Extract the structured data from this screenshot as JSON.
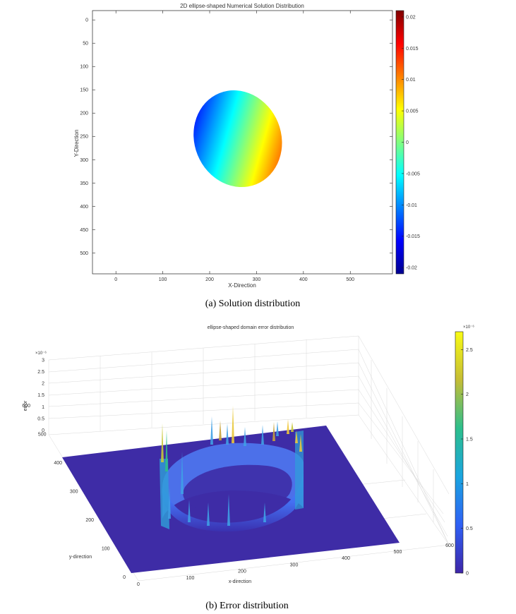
{
  "chart_data": [
    {
      "type": "heatmap",
      "title": "2D ellipse-shaped Numerical Solution Distribution",
      "xlabel": "X-Direction",
      "ylabel": "Y-Direction",
      "xlim": [
        -50,
        590
      ],
      "ylim": [
        545,
        -20
      ],
      "xticks": [
        0,
        100,
        200,
        300,
        400,
        500
      ],
      "yticks": [
        0,
        50,
        100,
        150,
        200,
        250,
        300,
        350,
        400,
        450,
        500
      ],
      "ellipse": {
        "cx": 260,
        "cy": 300,
        "rx": 125,
        "ry": 170
      },
      "colorbar": {
        "colormap": "jet",
        "range": [
          -0.021,
          0.021
        ],
        "ticks": [
          0.02,
          0.015,
          0.01,
          0.005,
          0,
          -0.005,
          -0.01,
          -0.015,
          -0.02
        ],
        "tick_labels": [
          "0.02",
          "0.015",
          "0.01",
          "0.005",
          "0",
          "-0.005",
          "-0.01",
          "-0.015",
          "-0.02"
        ]
      },
      "caption": "(a) Solution distribution"
    },
    {
      "type": "surface",
      "title": "ellipse-shaped domain error distribution",
      "xlabel": "x-direction",
      "ylabel": "y-direction",
      "zlabel": "error",
      "z_exponent": "×10⁻⁶",
      "x_tick_labels": [
        "0",
        "100",
        "200",
        "300",
        "400",
        "500",
        "600"
      ],
      "y_tick_labels": [
        "0",
        "100",
        "200",
        "300",
        "400",
        "500",
        "600"
      ],
      "z_tick_labels": [
        "0",
        "0.5",
        "1",
        "1.5",
        "2",
        "2.5",
        "3"
      ],
      "colorbar": {
        "colormap": "parula",
        "range": [
          0,
          2.7
        ],
        "tick_labels": [
          "2.5",
          "2",
          "1.5",
          "1",
          "0.5",
          "0"
        ],
        "exponent": "×10⁻⁶"
      },
      "caption": "(b) Error distribution"
    }
  ]
}
